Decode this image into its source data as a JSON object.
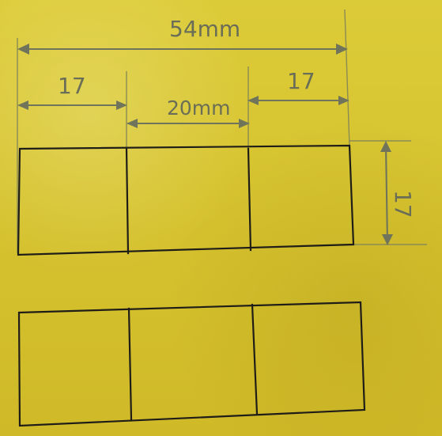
{
  "diagram": {
    "labels": {
      "overall_width": "54mm",
      "left_width": "17",
      "center_width": "20mm",
      "right_width": "17",
      "height": "17"
    },
    "colors": {
      "paper": "#d9c531",
      "ink": "#1f1d17",
      "pencil": "#6f745a"
    }
  }
}
